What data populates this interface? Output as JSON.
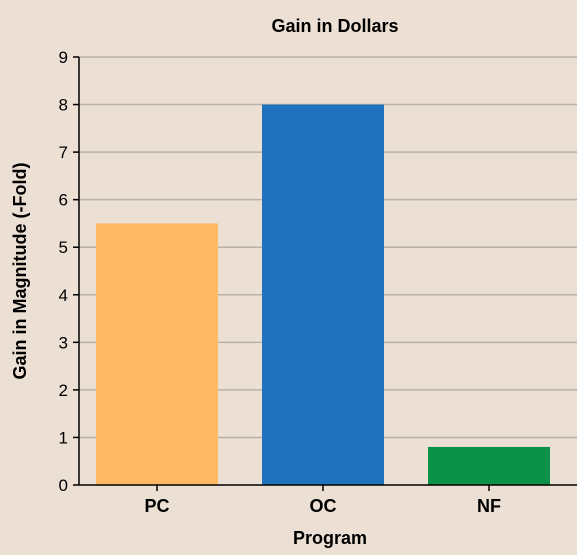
{
  "chart_data": {
    "type": "bar",
    "title": "Gain in Dollars",
    "xlabel": "Program",
    "ylabel": "Gain in Magnitude (-Fold)",
    "categories": [
      "PC",
      "OC",
      "NF"
    ],
    "values": [
      5.5,
      8.0,
      0.8
    ],
    "bar_colors": [
      "#ffb964",
      "#1f73bd",
      "#0b9148"
    ],
    "ylim": [
      0,
      9
    ],
    "yticks": [
      "0",
      "1",
      "2",
      "3",
      "4",
      "5",
      "6",
      "7",
      "8",
      "9"
    ],
    "grid": true,
    "legend": "none"
  },
  "colors": {
    "background": "#ecdfd3",
    "gridline": "#b9b1a9",
    "axis": "#000000"
  }
}
